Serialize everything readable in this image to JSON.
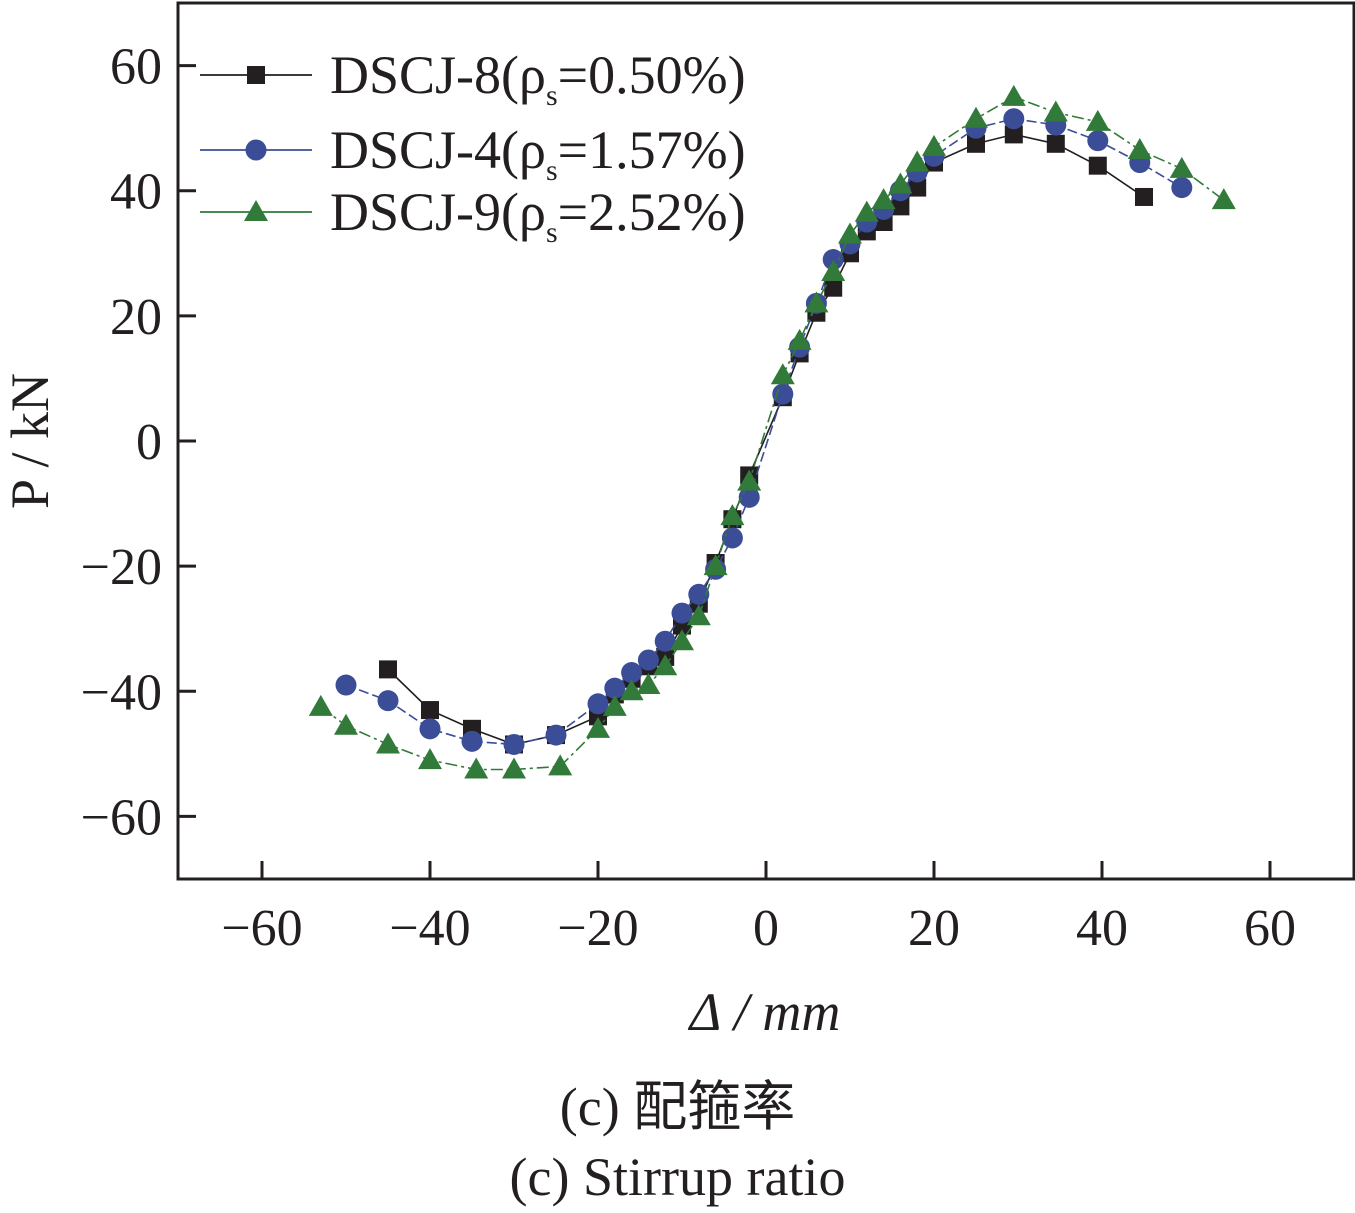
{
  "chart_data": {
    "type": "line",
    "xlabel": "Δ / mm",
    "ylabel": "P / kN",
    "xlim": [
      -70,
      70
    ],
    "ylim": [
      -70,
      70
    ],
    "xticks": [
      -60,
      -40,
      -20,
      0,
      20,
      40,
      60
    ],
    "yticks": [
      -60,
      -40,
      -20,
      0,
      20,
      40,
      60
    ],
    "tick_labels_x": [
      "−60",
      "−40",
      "−20",
      "0",
      "20",
      "40",
      "60"
    ],
    "tick_labels_y": [
      "−60",
      "−40",
      "−20",
      "0",
      "20",
      "40",
      "60"
    ],
    "grid": false,
    "legend": "top-left",
    "series": [
      {
        "name": "DSCJ-8(ρs=0.50%)",
        "legend_main": "DSCJ-8(ρ",
        "legend_sub": "s",
        "legend_tail": "=0.50%)",
        "marker": "square",
        "color": "#231f20",
        "x": [
          -45,
          -40,
          -35,
          -30,
          -25,
          -20,
          -18,
          -16,
          -14,
          -12,
          -10,
          -8,
          -6,
          -4,
          -2,
          2,
          4,
          6,
          8,
          10,
          12,
          14,
          16,
          18,
          20,
          25,
          29.5,
          34.5,
          39.5,
          45
        ],
        "y": [
          -36.5,
          -43,
          -46,
          -48.5,
          -47,
          -44,
          -40.5,
          -38,
          -36,
          -34.5,
          -29.5,
          -26,
          -19.5,
          -12.5,
          -5.5,
          7,
          14,
          20.5,
          24.5,
          30,
          33.5,
          35,
          37.5,
          40.5,
          44.5,
          47.5,
          49,
          47.5,
          44,
          39
        ]
      },
      {
        "name": "DSCJ-4(ρs=1.57%)",
        "legend_main": "DSCJ-4(ρ",
        "legend_sub": "s",
        "legend_tail": "=1.57%)",
        "marker": "circle",
        "color": "#3b4d96",
        "x": [
          -50,
          -45,
          -40,
          -35,
          -30,
          -25,
          -20,
          -18,
          -16,
          -14,
          -12,
          -10,
          -8,
          -6,
          -4,
          -2,
          2,
          4,
          6,
          8,
          10,
          12,
          14,
          16,
          18,
          20,
          25,
          29.5,
          34.5,
          39.5,
          44.5,
          49.5
        ],
        "y": [
          -39,
          -41.5,
          -46,
          -48,
          -48.5,
          -47,
          -42,
          -39.5,
          -37,
          -35,
          -32,
          -27.5,
          -24.5,
          -20.5,
          -15.5,
          -9,
          7.5,
          15,
          22,
          29,
          31.5,
          35,
          37,
          40,
          43,
          45.5,
          50,
          51.5,
          50.5,
          48,
          44.5,
          40.5
        ]
      },
      {
        "name": "DSCJ-9(ρs=2.52%)",
        "legend_main": "DSCJ-9(ρ",
        "legend_sub": "s",
        "legend_tail": "=2.52%)",
        "marker": "triangle",
        "color": "#327a3a",
        "x": [
          -53,
          -50,
          -45,
          -40,
          -34.5,
          -30,
          -24.5,
          -20,
          -18,
          -16,
          -14,
          -12,
          -10,
          -8,
          -6,
          -4,
          -2,
          2,
          4,
          6,
          8,
          10,
          12,
          14,
          16,
          18,
          20,
          25,
          29.5,
          34.5,
          39.5,
          44.5,
          49.5,
          54.5
        ],
        "y": [
          -42.5,
          -45.5,
          -48.5,
          -51,
          -52.5,
          -52.5,
          -52,
          -46,
          -42.5,
          -40,
          -39,
          -36,
          -32,
          -28,
          -20,
          -12,
          -6.5,
          10.5,
          16,
          22,
          27,
          33,
          36.5,
          38.5,
          41,
          44.5,
          47,
          51.5,
          55,
          52.5,
          51,
          46.5,
          43.5,
          38.5
        ]
      }
    ]
  },
  "captions": {
    "cn": "(c) 配箍率",
    "en": "(c) Stirrup ratio"
  }
}
